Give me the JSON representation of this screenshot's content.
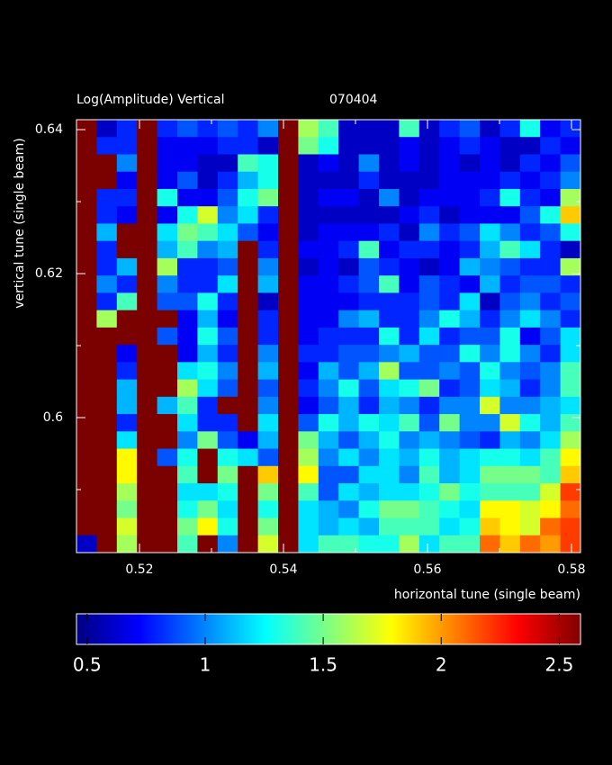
{
  "chart_data": {
    "type": "heatmap",
    "title": "Log(Amplitude) Vertical",
    "subtitle": "070404",
    "x_label": "horizontal tune (single beam)",
    "y_label": "vertical tune (single beam)",
    "xlim": [
      0.51125,
      0.58125
    ],
    "ylim": [
      0.58125,
      0.64138
    ],
    "xticks": [
      0.52,
      0.54,
      0.56,
      0.58
    ],
    "xminor_ticks": [
      0.53,
      0.55,
      0.57
    ],
    "yticks": [
      0.6,
      0.62,
      0.64
    ],
    "yminor_ticks": [
      0.59,
      0.61,
      0.63
    ],
    "origin": "upper",
    "z": [
      [
        2.6,
        0.6,
        0.8,
        2.6,
        0.8,
        0.9,
        0.8,
        0.9,
        0.8,
        1.0,
        2.6,
        1.6,
        1.4,
        0.6,
        0.6,
        0.6,
        1.4,
        0.6,
        0.8,
        0.9,
        0.6,
        0.8,
        1.3,
        0.7,
        0.8
      ],
      [
        2.6,
        0.8,
        0.8,
        2.6,
        0.7,
        0.7,
        0.7,
        0.8,
        0.8,
        0.6,
        2.6,
        1.5,
        1.3,
        0.6,
        0.6,
        0.6,
        0.7,
        0.6,
        0.7,
        0.8,
        0.7,
        0.6,
        0.6,
        0.8,
        0.7
      ],
      [
        2.6,
        2.6,
        1.0,
        2.6,
        0.7,
        0.7,
        0.6,
        0.6,
        1.4,
        1.3,
        2.6,
        0.6,
        0.7,
        0.6,
        1.0,
        0.6,
        0.7,
        0.6,
        0.7,
        0.6,
        0.7,
        0.6,
        0.8,
        0.7,
        0.9
      ],
      [
        2.6,
        2.6,
        0.7,
        2.6,
        0.7,
        0.9,
        0.6,
        0.8,
        1.1,
        1.3,
        2.6,
        0.6,
        0.6,
        0.6,
        0.8,
        0.6,
        0.6,
        0.6,
        0.7,
        0.7,
        0.7,
        0.8,
        0.7,
        0.8,
        1.0
      ],
      [
        2.6,
        0.8,
        0.8,
        2.6,
        1.3,
        0.7,
        0.7,
        0.9,
        1.3,
        1.5,
        2.6,
        0.6,
        0.7,
        0.7,
        0.6,
        1.0,
        0.6,
        0.7,
        0.7,
        0.7,
        0.8,
        1.3,
        0.8,
        0.7,
        1.6
      ],
      [
        2.6,
        0.8,
        0.7,
        2.6,
        0.7,
        1.3,
        1.7,
        1.0,
        1.2,
        0.8,
        2.6,
        0.6,
        0.6,
        0.6,
        0.6,
        0.6,
        0.7,
        0.8,
        0.6,
        0.7,
        0.7,
        0.7,
        0.9,
        1.3,
        1.9
      ],
      [
        2.6,
        1.1,
        2.6,
        2.6,
        1.2,
        1.5,
        1.4,
        1.2,
        0.9,
        0.7,
        2.6,
        0.6,
        0.7,
        0.7,
        0.7,
        0.8,
        0.6,
        1.0,
        0.8,
        0.9,
        1.2,
        1.0,
        0.8,
        0.9,
        1.3
      ],
      [
        2.6,
        0.8,
        2.6,
        2.6,
        1.1,
        1.4,
        1.0,
        1.1,
        2.6,
        0.8,
        2.6,
        0.7,
        0.7,
        0.8,
        1.4,
        0.7,
        0.8,
        0.8,
        0.7,
        0.8,
        1.1,
        1.4,
        1.2,
        0.8,
        0.6
      ],
      [
        2.6,
        0.8,
        1.1,
        2.6,
        1.6,
        0.8,
        0.8,
        0.9,
        2.6,
        1.0,
        2.6,
        0.6,
        0.7,
        0.6,
        0.9,
        0.8,
        0.7,
        0.6,
        0.7,
        1.1,
        1.0,
        0.9,
        0.8,
        0.8,
        1.6
      ],
      [
        2.6,
        1.0,
        0.8,
        2.6,
        1.0,
        0.8,
        0.8,
        1.2,
        2.6,
        1.1,
        2.6,
        0.7,
        0.7,
        0.8,
        0.9,
        1.4,
        0.7,
        0.9,
        0.8,
        0.7,
        1.1,
        0.8,
        0.9,
        0.9,
        0.8
      ],
      [
        2.6,
        0.8,
        1.4,
        2.6,
        0.9,
        0.9,
        1.3,
        0.8,
        2.6,
        0.6,
        2.6,
        0.7,
        0.7,
        0.7,
        0.8,
        0.8,
        0.8,
        0.9,
        0.8,
        1.2,
        0.6,
        0.9,
        1.0,
        0.8,
        0.9
      ],
      [
        2.6,
        1.6,
        2.6,
        2.6,
        2.6,
        0.7,
        1.1,
        0.7,
        2.6,
        0.8,
        2.6,
        0.7,
        0.7,
        1.0,
        1.1,
        0.8,
        0.8,
        1.0,
        1.3,
        1.1,
        0.8,
        1.0,
        1.2,
        1.0,
        0.8
      ],
      [
        2.6,
        2.6,
        2.6,
        2.6,
        0.9,
        0.7,
        1.3,
        0.9,
        2.6,
        0.8,
        2.6,
        0.7,
        0.8,
        0.8,
        0.8,
        1.3,
        0.8,
        1.2,
        0.8,
        0.9,
        0.9,
        1.3,
        0.7,
        0.9,
        1.2
      ],
      [
        2.6,
        2.6,
        0.7,
        2.6,
        2.6,
        0.7,
        1.1,
        0.8,
        2.6,
        1.0,
        2.6,
        0.8,
        0.8,
        0.9,
        0.9,
        1.0,
        1.1,
        0.9,
        0.9,
        1.3,
        1.0,
        1.3,
        1.0,
        0.8,
        1.2
      ],
      [
        2.6,
        2.6,
        0.8,
        2.6,
        2.6,
        1.2,
        1.3,
        1.0,
        2.6,
        1.1,
        2.6,
        0.7,
        1.1,
        0.9,
        1.1,
        1.6,
        0.9,
        0.9,
        1.0,
        0.9,
        1.3,
        1.0,
        0.9,
        1.0,
        1.4
      ],
      [
        2.6,
        2.6,
        1.1,
        2.6,
        2.6,
        1.6,
        1.2,
        0.9,
        2.6,
        0.9,
        2.6,
        0.8,
        1.0,
        1.3,
        0.9,
        1.2,
        1.3,
        1.5,
        0.8,
        0.9,
        1.2,
        1.1,
        0.8,
        1.0,
        1.4
      ],
      [
        2.6,
        2.6,
        1.1,
        2.6,
        1.1,
        1.4,
        0.8,
        2.6,
        2.6,
        1.0,
        2.6,
        0.7,
        0.9,
        1.1,
        0.8,
        1.1,
        1.0,
        0.8,
        1.0,
        1.0,
        1.7,
        1.0,
        1.0,
        1.1,
        1.2
      ],
      [
        2.6,
        2.6,
        0.8,
        2.6,
        2.6,
        1.2,
        0.8,
        0.8,
        2.6,
        1.2,
        2.6,
        0.9,
        1.3,
        1.1,
        1.3,
        1.2,
        1.4,
        0.9,
        1.5,
        1.0,
        1.0,
        1.7,
        1.3,
        1.1,
        1.4
      ],
      [
        2.6,
        2.6,
        1.2,
        2.6,
        2.6,
        1.0,
        1.5,
        0.9,
        0.7,
        1.1,
        2.6,
        1.5,
        1.1,
        0.9,
        1.1,
        1.3,
        1.0,
        1.1,
        1.0,
        0.9,
        0.8,
        1.1,
        1.0,
        1.2,
        1.6
      ],
      [
        2.6,
        2.6,
        1.8,
        2.6,
        0.9,
        1.3,
        2.6,
        1.3,
        1.2,
        0.9,
        2.6,
        1.6,
        1.0,
        1.2,
        1.0,
        1.2,
        1.1,
        1.3,
        1.1,
        1.2,
        1.3,
        1.3,
        1.2,
        1.4,
        1.8
      ],
      [
        2.6,
        2.6,
        1.8,
        2.6,
        2.6,
        1.4,
        2.6,
        1.5,
        2.6,
        1.9,
        2.6,
        1.8,
        0.9,
        0.9,
        1.2,
        1.2,
        1.0,
        1.4,
        1.1,
        1.2,
        1.5,
        1.5,
        1.5,
        1.4,
        1.9
      ],
      [
        2.6,
        2.6,
        1.6,
        2.6,
        2.6,
        1.2,
        1.2,
        1.3,
        2.6,
        1.5,
        2.6,
        1.4,
        0.9,
        1.2,
        1.1,
        1.2,
        1.2,
        1.3,
        1.5,
        1.3,
        1.4,
        1.4,
        1.4,
        1.7,
        2.2
      ],
      [
        2.6,
        2.6,
        1.5,
        2.6,
        2.6,
        1.3,
        1.5,
        1.2,
        2.6,
        1.3,
        2.6,
        1.2,
        1.1,
        1.0,
        1.3,
        1.5,
        1.5,
        1.4,
        1.3,
        1.2,
        1.8,
        1.8,
        1.7,
        1.8,
        2.1
      ],
      [
        2.6,
        2.6,
        1.7,
        2.6,
        2.6,
        1.5,
        1.8,
        1.3,
        2.6,
        1.5,
        2.6,
        1.2,
        1.1,
        1.2,
        1.1,
        1.4,
        1.4,
        1.4,
        1.2,
        1.3,
        1.9,
        1.8,
        1.7,
        2.1,
        2.2
      ],
      [
        0.6,
        2.6,
        1.6,
        2.6,
        2.6,
        1.4,
        2.6,
        1.0,
        2.6,
        1.7,
        2.6,
        1.2,
        1.4,
        1.4,
        1.3,
        1.3,
        1.6,
        1.2,
        1.4,
        1.4,
        2.1,
        1.9,
        2.1,
        2.0,
        2.2
      ]
    ],
    "colorbar": {
      "colormap": "jet",
      "clim": [
        0.455,
        2.59
      ],
      "ticks": [
        0.5,
        1,
        1.5,
        2,
        2.5
      ]
    }
  }
}
